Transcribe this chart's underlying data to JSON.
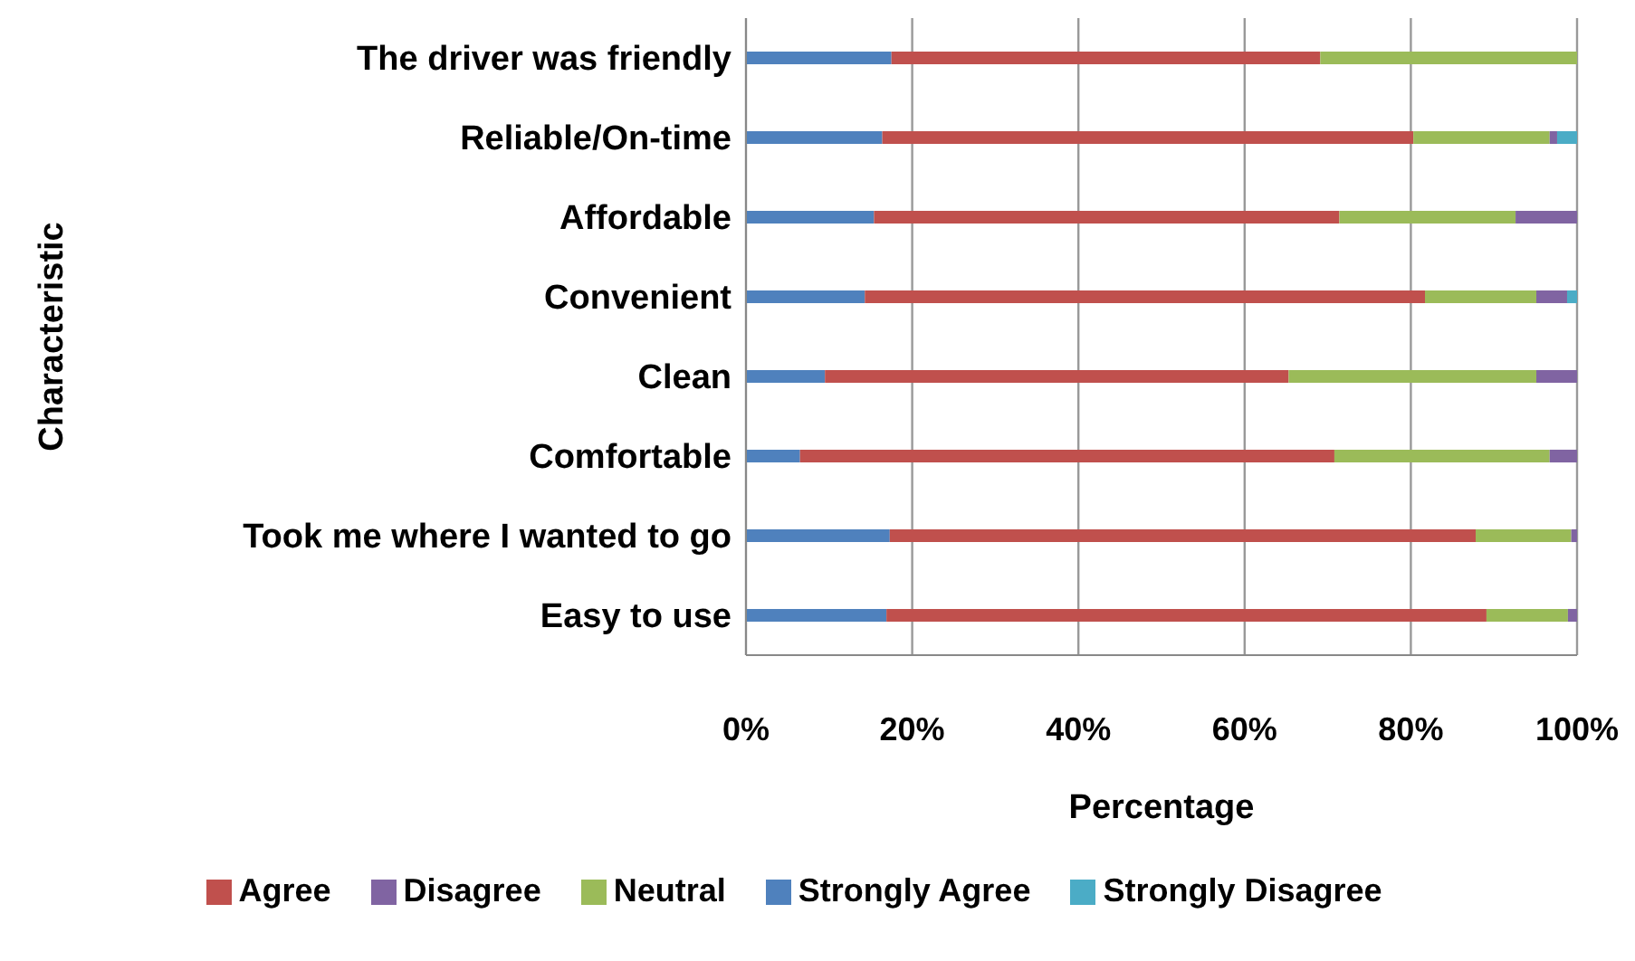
{
  "chart_data": {
    "type": "bar",
    "orientation": "horizontal",
    "stacked": true,
    "xlabel": "Percentage",
    "ylabel": "Characteristic",
    "categories": [
      "The driver was friendly",
      "Reliable/On-time",
      "Affordable",
      "Convenient",
      "Clean",
      "Comfortable",
      "Took me where I wanted to go",
      "Easy to use"
    ],
    "series": [
      {
        "name": "Strongly Agree",
        "color": "#4f81bd",
        "values": [
          17.5,
          16.4,
          15.4,
          14.3,
          9.5,
          6.5,
          17.3,
          16.9
        ]
      },
      {
        "name": "Agree",
        "color": "#c0504d",
        "values": [
          51.6,
          63.9,
          56.0,
          67.4,
          55.8,
          64.3,
          70.5,
          72.2
        ]
      },
      {
        "name": "Neutral",
        "color": "#9bbb59",
        "values": [
          30.9,
          16.4,
          21.2,
          13.4,
          29.8,
          25.9,
          11.5,
          9.8
        ]
      },
      {
        "name": "Disagree",
        "color": "#8064a2",
        "values": [
          null,
          0.9,
          7.4,
          3.7,
          4.9,
          3.3,
          0.7,
          1.1
        ]
      },
      {
        "name": "Strongly Disagree",
        "color": "#4bacc6",
        "values": [
          null,
          2.4,
          null,
          1.2,
          null,
          null,
          null,
          null
        ]
      }
    ],
    "xlim": [
      0,
      100
    ],
    "xticks": [
      {
        "value": 0,
        "label": "0%"
      },
      {
        "value": 20,
        "label": "20%"
      },
      {
        "value": 40,
        "label": "40%"
      },
      {
        "value": 60,
        "label": "60%"
      },
      {
        "value": 80,
        "label": "80%"
      },
      {
        "value": 100,
        "label": "100%"
      }
    ],
    "grid": "x",
    "legend": "bottom"
  }
}
